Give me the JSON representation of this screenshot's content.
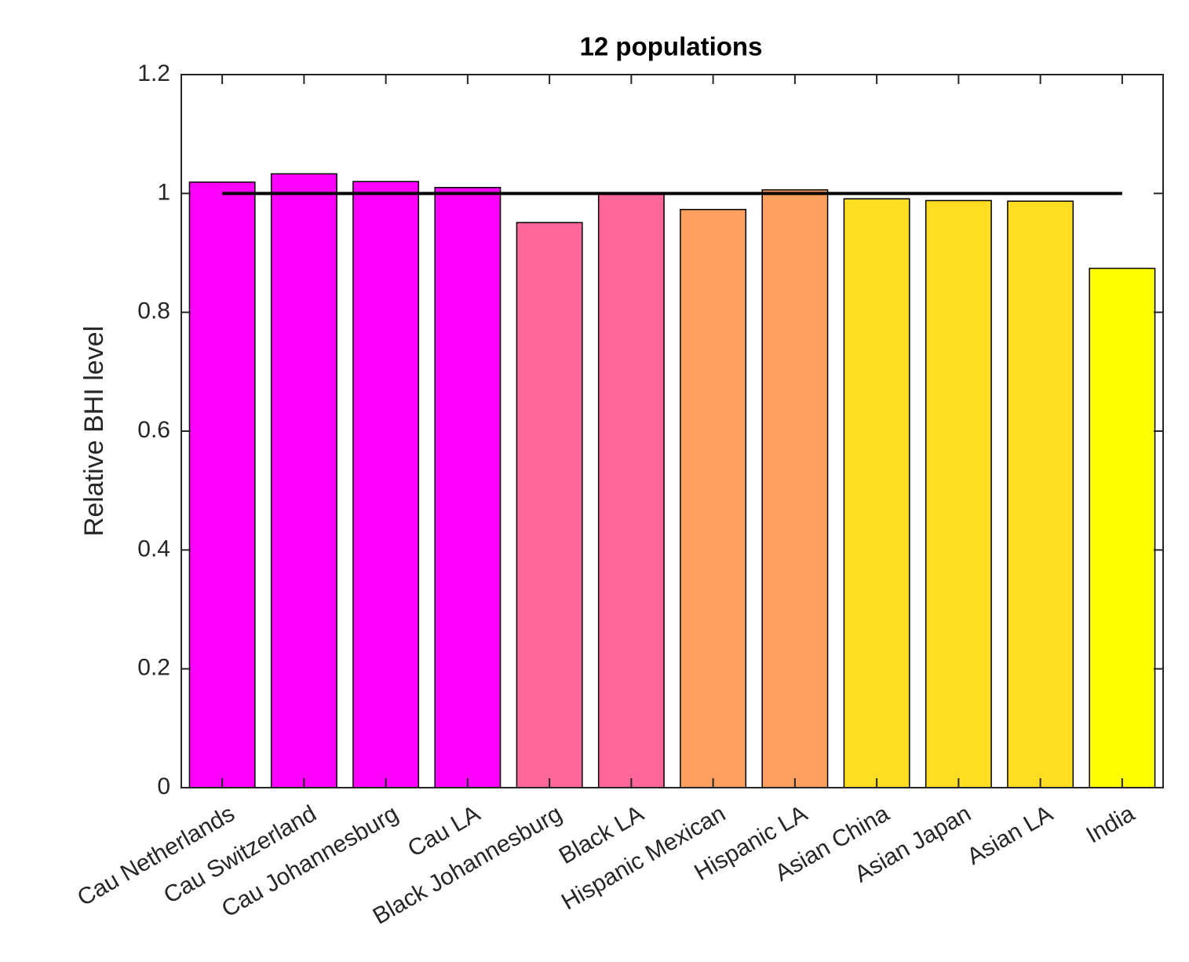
{
  "chart_data": {
    "type": "bar",
    "title": "12 populations",
    "y_label": "Relative BHI level",
    "categories": [
      "Cau Netherlands",
      "Cau Switzerland",
      "Cau Johannesburg",
      "Cau LA",
      "Black Johannesburg",
      "Black LA",
      "Hispanic Mexican",
      "Hispanic LA",
      "Asian China",
      "Asian Japan",
      "Asian LA",
      "India"
    ],
    "values": [
      1.019,
      1.033,
      1.02,
      1.01,
      0.951,
      1.0,
      0.973,
      1.006,
      0.991,
      0.988,
      0.987,
      0.874
    ],
    "colors": [
      "#ff00ff",
      "#ff00ff",
      "#ff00ff",
      "#ff00ff",
      "#ff6699",
      "#ff6699",
      "#ffa060",
      "#ffa060",
      "#ffdd22",
      "#ffdd22",
      "#ffdd22",
      "#ffff00"
    ],
    "reference_line": 1,
    "ylim": [
      0,
      1.2
    ],
    "yticks": [
      0,
      0.2,
      0.4,
      0.6,
      0.8,
      1,
      1.2
    ]
  }
}
